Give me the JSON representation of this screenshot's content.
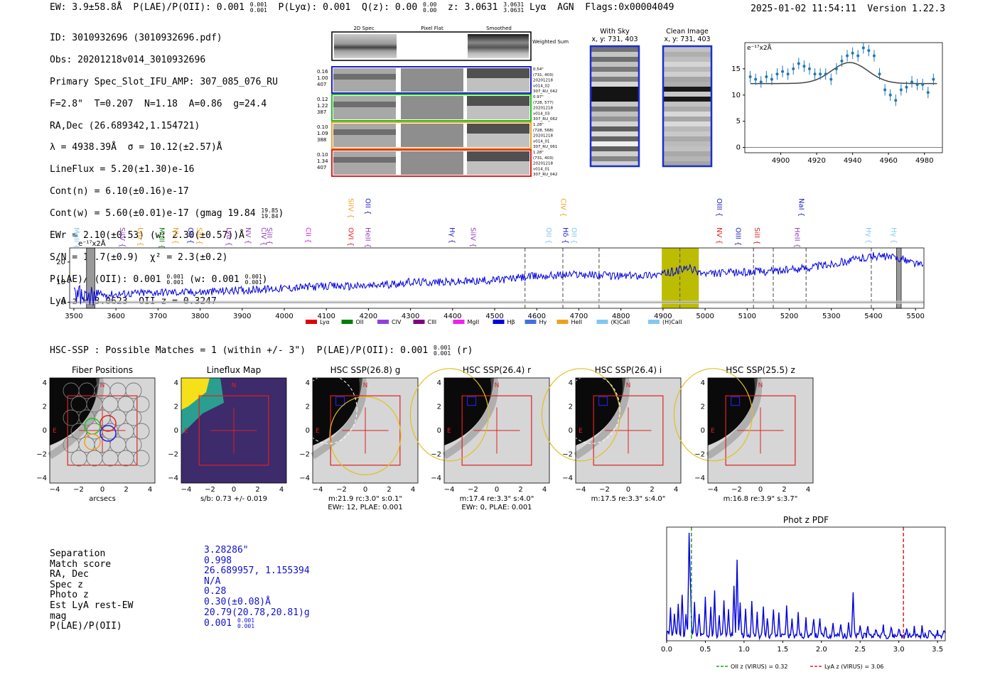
{
  "header": {
    "ew": "EW: 3.9±58.8Å",
    "plae_label": "P(LAE)/P(OII): 0.001",
    "plae_hi": "0.001",
    "plae_lo": "0.001",
    "plya": "P(Lyα): 0.001",
    "qz_label": "Q(z): 0.00",
    "qz_hi": "0.00",
    "qz_lo": "0.00",
    "z_label": "z: 3.0631",
    "z_hi": "3.0631",
    "z_lo": "3.0631",
    "tail": "Lyα  AGN  Flags:0x00004049",
    "timestamp": "2025-01-02 11:54:11  Version 1.22.3"
  },
  "info": {
    "id": "ID: 3010932696 (3010932696.pdf)",
    "obs": "Obs: 20201218v014_3010932696",
    "primary": "Primary Spec_Slot_IFU_AMP: 307_085_076_RU",
    "fparams": "F=2.8\"  T=0.207  N=1.18  A=0.86  g=24.4",
    "radec": "RA,Dec (26.689342,1.154721)",
    "lambda": "λ = 4938.39Å  σ = 10.12(±2.57)Å",
    "lineflux": "LineFlux = 5.20(±1.30)e-16",
    "contn": "Cont(n) = 6.10(±0.16)e-17",
    "contw": "Cont(w) = 5.60(±0.01)e-17 (gmag 19.84",
    "contw_hi": "19.85",
    "contw_lo": "19.84",
    "ewr": "EWr = 2.10(±0.53) (w: 2.30(±0.57))Å",
    "sn": "S/N = 10.7(±0.9)  χ² = 2.3(±0.2)",
    "plae": "P(LAE)/P(OII): 0.001",
    "plae_hi": "0.001",
    "plae_lo": "0.001",
    "plae_w": "(w: 0.001",
    "plae_w_hi": "0.001",
    "plae_w_lo": "0.001",
    "lyaz": "LyA z = 3.0623  OII z = 0.3247"
  },
  "cutouts": {
    "col_headers": [
      "2D Spec",
      "Pixel Flat",
      "Smoothed"
    ],
    "weighted_sum": "Weighted Sum",
    "rows": [
      {
        "left": [
          "0.16",
          "1.00",
          "407"
        ],
        "right": [
          "0.54\"",
          "(731, 403)",
          "20201218",
          "v014_02",
          "307_RU_042"
        ],
        "color": "#2020c0"
      },
      {
        "left": [
          "0.12",
          "1.22",
          "387"
        ],
        "right": [
          "0.97\"",
          "(728, 577)",
          "20201218",
          "v014_03",
          "307_RU_062"
        ],
        "color": "#20c020"
      },
      {
        "left": [
          "0.10",
          "1.09",
          "388"
        ],
        "right": [
          "1.28\"",
          "(728, 568)",
          "20201218",
          "v014_01",
          "307_RU_061"
        ],
        "color": "#f0a020"
      },
      {
        "left": [
          "0.10",
          "1.34",
          "407"
        ],
        "right": [
          "1.28\"",
          "(731, 403)",
          "20201218",
          "v014_01",
          "307_RU_042"
        ],
        "color": "#e02020"
      }
    ],
    "with_sky": "With Sky",
    "with_sky_xy": "x, y: 731, 403",
    "clean": "Clean Image",
    "clean_xy": "x, y: 731, 403"
  },
  "zoom_chart": {
    "type": "scatter",
    "unit_label": "e⁻¹⁷x2Å",
    "x": [
      4883,
      4886,
      4889,
      4892,
      4895,
      4898,
      4901,
      4904,
      4907,
      4910,
      4913,
      4916,
      4919,
      4922,
      4925,
      4928,
      4931,
      4934,
      4937,
      4940,
      4943,
      4946,
      4949,
      4952,
      4955,
      4958,
      4961,
      4964,
      4967,
      4970,
      4973,
      4976,
      4979,
      4982,
      4985
    ],
    "y": [
      13.5,
      13,
      12.5,
      13.5,
      13,
      14,
      14.5,
      14,
      15,
      16,
      15.5,
      15,
      14,
      14,
      14,
      13,
      15,
      16.5,
      17.5,
      18,
      17.5,
      19,
      18.5,
      17.5,
      14,
      11,
      10,
      9,
      11,
      11.5,
      12.5,
      12,
      12,
      10.5,
      13
    ],
    "fit": {
      "center": 4938.39,
      "amp": 4,
      "sigma": 10.12,
      "base": 12.2
    },
    "xlim": [
      4880,
      4990
    ],
    "ylim": [
      -1,
      20
    ],
    "xticks": [
      4900,
      4920,
      4940,
      4960,
      4980
    ],
    "yticks": [
      0,
      5,
      10,
      15
    ]
  },
  "spectrum": {
    "type": "line",
    "unit_label": "e⁻¹⁷x2Å",
    "xlim": [
      3490,
      5520
    ],
    "ylim": [
      -3,
      27
    ],
    "xticks": [
      3500,
      3600,
      3700,
      3800,
      3900,
      4000,
      4100,
      4200,
      4300,
      4400,
      4500,
      4600,
      4700,
      4800,
      4900,
      5000,
      5100,
      5200,
      5300,
      5400,
      5500
    ],
    "yticks": [
      0,
      10,
      20
    ],
    "trend": [
      [
        3500,
        3
      ],
      [
        3600,
        4
      ],
      [
        3700,
        5
      ],
      [
        3800,
        5
      ],
      [
        3900,
        6
      ],
      [
        4000,
        7
      ],
      [
        4100,
        8
      ],
      [
        4200,
        8
      ],
      [
        4300,
        10
      ],
      [
        4400,
        10
      ],
      [
        4500,
        11
      ],
      [
        4600,
        13
      ],
      [
        4700,
        14
      ],
      [
        4800,
        13
      ],
      [
        4900,
        14
      ],
      [
        4960,
        17
      ],
      [
        5000,
        14
      ],
      [
        5100,
        15
      ],
      [
        5200,
        16
      ],
      [
        5300,
        19
      ],
      [
        5400,
        23
      ],
      [
        5460,
        22
      ],
      [
        5520,
        18
      ]
    ],
    "highlight_band": [
      4897,
      4985
    ],
    "gray_bands": [
      [
        3530,
        3550
      ],
      [
        5455,
        5466
      ]
    ],
    "dashed_lines": [
      4572,
      4662,
      4748,
      4940,
      5115,
      5162,
      5240,
      5395
    ],
    "line_labels": [
      {
        "label": "MgII",
        "x": 3508,
        "tier": 0,
        "color": "#80c8f0"
      },
      {
        "label": "SiIV",
        "x": 3617,
        "tier": 0,
        "color": "#9040c0"
      },
      {
        "label": "Lyα",
        "x": 3660,
        "tier": 0,
        "color": "#f0a020"
      },
      {
        "label": "MgII",
        "x": 3710,
        "tier": 0,
        "color": "#108010"
      },
      {
        "label": "NV",
        "x": 3743,
        "tier": 0,
        "color": "#f0a020"
      },
      {
        "label": "OII",
        "x": 3779,
        "tier": 0,
        "color": "#2020c0"
      },
      {
        "label": "SiII",
        "x": 3800,
        "tier": 0,
        "color": "#f0a020"
      },
      {
        "label": "Lyα",
        "x": 3870,
        "tier": 0,
        "color": "#9040c0"
      },
      {
        "label": "NV",
        "x": 3916,
        "tier": 0,
        "color": "#9040c0"
      },
      {
        "label": "CIV",
        "x": 3953,
        "tier": 0,
        "color": "#9040c0"
      },
      {
        "label": "SiII",
        "x": 3966,
        "tier": 0,
        "color": "#9040c0"
      },
      {
        "label": "CII",
        "x": 4058,
        "tier": 0,
        "color": "#e020e0"
      },
      {
        "label": "SiIV",
        "x": 4160,
        "tier": 1,
        "color": "#f0a020"
      },
      {
        "label": "OVI",
        "x": 4160,
        "tier": 0,
        "color": "#e02020"
      },
      {
        "label": "OII",
        "x": 4200,
        "tier": 1,
        "color": "#2020c0"
      },
      {
        "label": "HeII",
        "x": 4200,
        "tier": 0,
        "color": "#9040c0"
      },
      {
        "label": "Hγ",
        "x": 4400,
        "tier": 0,
        "color": "#2020c0"
      },
      {
        "label": "SiIV",
        "x": 4450,
        "tier": 0,
        "color": "#9040c0"
      },
      {
        "label": "CIV",
        "x": 4665,
        "tier": 1,
        "color": "#f0a020"
      },
      {
        "label": "OII",
        "x": 4630,
        "tier": 0,
        "color": "#80c8f0"
      },
      {
        "label": "Hδ",
        "x": 4670,
        "tier": 0,
        "color": "#2020c0"
      },
      {
        "label": "OII",
        "x": 4690,
        "tier": 0,
        "color": "#80c8f0"
      },
      {
        "label": "OIII",
        "x": 5035,
        "tier": 1,
        "color": "#2020c0"
      },
      {
        "label": "NV",
        "x": 5035,
        "tier": 0,
        "color": "#e02020"
      },
      {
        "label": "OIII",
        "x": 5080,
        "tier": 0,
        "color": "#2020c0"
      },
      {
        "label": "SiII",
        "x": 5125,
        "tier": 0,
        "color": "#e02020"
      },
      {
        "label": "NaI",
        "x": 5230,
        "tier": 1,
        "color": "#2020c0"
      },
      {
        "label": "HeII",
        "x": 5220,
        "tier": 0,
        "color": "#9040c0"
      },
      {
        "label": "Hγ",
        "x": 5390,
        "tier": 0,
        "color": "#80c8f0"
      },
      {
        "label": "Hγ",
        "x": 5450,
        "tier": 0,
        "color": "#80c8f0"
      }
    ],
    "legend": [
      {
        "label": "Lyα",
        "color": "#e00000"
      },
      {
        "label": "OII",
        "color": "#008000"
      },
      {
        "label": "CIV",
        "color": "#9040e0"
      },
      {
        "label": "CIII",
        "color": "#800080"
      },
      {
        "label": "MgII",
        "color": "#f020f0"
      },
      {
        "label": "Hβ",
        "color": "#0000e0"
      },
      {
        "label": "Hγ",
        "color": "#4070e0"
      },
      {
        "label": "HeII",
        "color": "#f0a020"
      },
      {
        "label": "(K)CaII",
        "color": "#80c8f0"
      },
      {
        "label": "(H)CaII",
        "color": "#80c8f0"
      }
    ]
  },
  "hsc": {
    "title_line": "HSC-SSP : Possible Matches = 1 (within +/- 3\")  P(LAE)/P(OII): 0.001",
    "title_hi": "0.001",
    "title_lo": "0.001",
    "title_suffix": "(r)",
    "panels": [
      {
        "title": "Fiber Positions",
        "caption1": "arcsecs",
        "caption2": ""
      },
      {
        "title": "Lineflux Map",
        "caption1": "s/b: 0.73 +/- 0.019",
        "caption2": ""
      },
      {
        "title": "HSC SSP(26.8) g",
        "caption1": "m:21.9 rc:3.0\"  s:0.1\"",
        "caption2": "EWr: 12, PLAE: 0.001"
      },
      {
        "title": "HSC SSP(26.4) r",
        "caption1": "m:17.4  re:3.3\"  s:4.0\"",
        "caption2": "EWr: 0, PLAE: 0.001"
      },
      {
        "title": "HSC SSP(26.4) i",
        "caption1": "m:17.5  re:3.3\"  s:4.0\"",
        "caption2": ""
      },
      {
        "title": "HSC SSP(25.5) z",
        "caption1": "m:16.8  re:3.9\"  s:3.7\"",
        "caption2": ""
      }
    ],
    "ticks": [
      "−4",
      "−2",
      "0",
      "2",
      "4"
    ],
    "north": "N",
    "east": "E"
  },
  "match": {
    "labels": [
      "Separation",
      "Match score",
      "RA, Dec",
      "Spec z",
      "Photo z",
      "Est LyA rest-EW",
      "mag",
      "P(LAE)/P(OII)"
    ],
    "values": [
      "3.28286\"",
      "0.998",
      "26.689957, 1.155394",
      "N/A",
      "0.28",
      "0.30(±0.08)Å",
      "20.79(20.78,20.81)g",
      "0.001"
    ],
    "plae_hi": "0.001",
    "plae_lo": "0.001"
  },
  "photz": {
    "type": "line",
    "title": "Phot z PDF",
    "xlim": [
      0,
      3.6
    ],
    "xticks": [
      0.0,
      0.5,
      1.0,
      1.5,
      2.0,
      2.5,
      3.0,
      3.5
    ],
    "xtick_labels": [
      "0.0",
      "0.5",
      "1.0",
      "1.5",
      "2.0",
      "2.5",
      "3.0",
      "3.5"
    ],
    "peaks": [
      [
        0.02,
        0.05
      ],
      [
        0.05,
        0.25
      ],
      [
        0.1,
        0.2
      ],
      [
        0.15,
        0.3
      ],
      [
        0.2,
        0.4
      ],
      [
        0.25,
        0.2
      ],
      [
        0.29,
        0.97
      ],
      [
        0.31,
        0.4
      ],
      [
        0.36,
        0.3
      ],
      [
        0.42,
        0.2
      ],
      [
        0.5,
        0.35
      ],
      [
        0.57,
        0.25
      ],
      [
        0.62,
        0.4
      ],
      [
        0.68,
        0.2
      ],
      [
        0.74,
        0.35
      ],
      [
        0.8,
        0.25
      ],
      [
        0.87,
        0.45
      ],
      [
        0.91,
        0.7
      ],
      [
        0.95,
        0.3
      ],
      [
        1.02,
        0.25
      ],
      [
        1.1,
        0.3
      ],
      [
        1.17,
        0.2
      ],
      [
        1.25,
        0.28
      ],
      [
        1.3,
        0.18
      ],
      [
        1.38,
        0.25
      ],
      [
        1.45,
        0.2
      ],
      [
        1.55,
        0.27
      ],
      [
        1.62,
        0.18
      ],
      [
        1.7,
        0.2
      ],
      [
        1.8,
        0.15
      ],
      [
        1.9,
        0.18
      ],
      [
        1.98,
        0.15
      ],
      [
        2.05,
        0.1
      ],
      [
        2.15,
        0.12
      ],
      [
        2.25,
        0.1
      ],
      [
        2.35,
        0.14
      ],
      [
        2.41,
        0.4
      ],
      [
        2.5,
        0.1
      ],
      [
        2.6,
        0.1
      ],
      [
        2.7,
        0.08
      ],
      [
        2.8,
        0.1
      ],
      [
        2.9,
        0.08
      ],
      [
        3.0,
        0.08
      ],
      [
        3.1,
        0.06
      ],
      [
        3.2,
        0.07
      ],
      [
        3.3,
        0.08
      ],
      [
        3.4,
        0.06
      ],
      [
        3.5,
        0.05
      ],
      [
        3.58,
        0.06
      ]
    ],
    "oii_z": 0.32,
    "lya_z": 3.06,
    "legend_oii": "OII z (VIRUS) = 0.32",
    "legend_lya": "LyA z (VIRUS) = 3.06",
    "oii_color": "#20a020",
    "lya_color": "#e02020"
  }
}
